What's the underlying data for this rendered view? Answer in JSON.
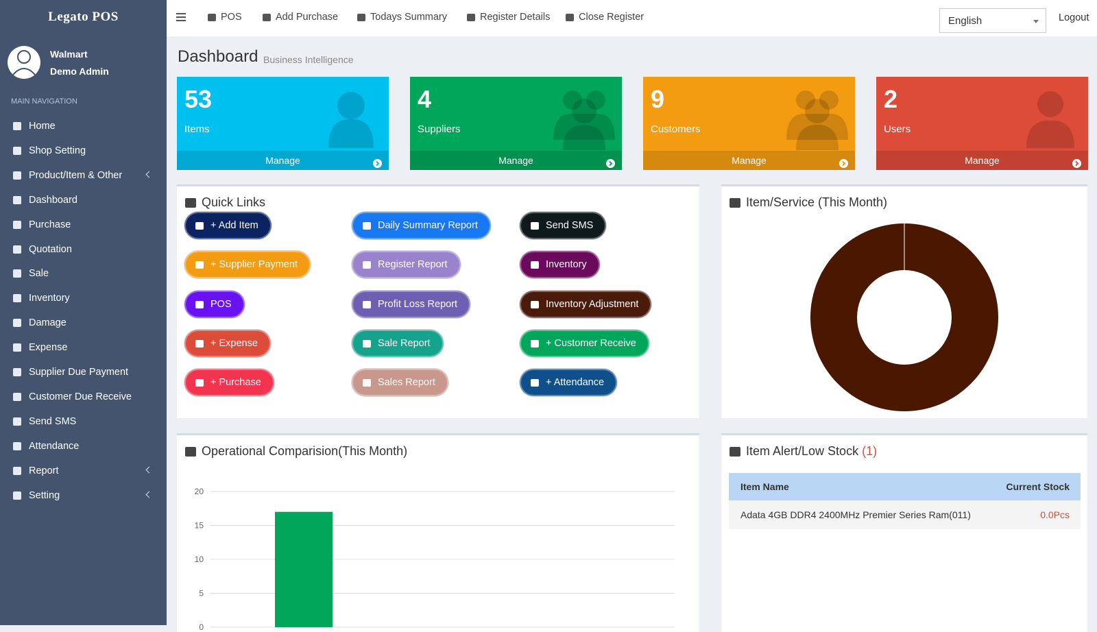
{
  "brand": "Legato POS",
  "user": {
    "name": "Walmart",
    "role": "Demo Admin"
  },
  "nav_header": "MAIN NAVIGATION",
  "nav": [
    {
      "label": "Home",
      "expandable": false
    },
    {
      "label": "Shop Setting",
      "expandable": false
    },
    {
      "label": "Product/Item & Other",
      "expandable": true
    },
    {
      "label": "Dashboard",
      "expandable": false
    },
    {
      "label": "Purchase",
      "expandable": false
    },
    {
      "label": "Quotation",
      "expandable": false
    },
    {
      "label": "Sale",
      "expandable": false
    },
    {
      "label": "Inventory",
      "expandable": false
    },
    {
      "label": "Damage",
      "expandable": false
    },
    {
      "label": "Expense",
      "expandable": false
    },
    {
      "label": "Supplier Due Payment",
      "expandable": false
    },
    {
      "label": "Customer Due Receive",
      "expandable": false
    },
    {
      "label": "Send SMS",
      "expandable": false
    },
    {
      "label": "Attendance",
      "expandable": false
    },
    {
      "label": "Report",
      "expandable": true
    },
    {
      "label": "Setting",
      "expandable": true
    }
  ],
  "topbar": {
    "links": [
      "POS",
      "Add Purchase",
      "Todays Summary",
      "Register Details",
      "Close Register"
    ],
    "language": "English",
    "logout": "Logout"
  },
  "page": {
    "title": "Dashboard",
    "subtitle": "Business Intelligence"
  },
  "stats": [
    {
      "value": 53,
      "label": "Items",
      "link": "Manage",
      "color": "#00c0ef"
    },
    {
      "value": 4,
      "label": "Suppliers",
      "link": "Manage",
      "color": "#00a65a"
    },
    {
      "value": 9,
      "label": "Customers",
      "link": "Manage",
      "color": "#f39c12"
    },
    {
      "value": 2,
      "label": "Users",
      "link": "Manage",
      "color": "#dd4b39"
    }
  ],
  "quick_links": {
    "title": "Quick Links",
    "buttons": [
      {
        "label": "+ Add Item",
        "color": "#0b2461"
      },
      {
        "label": "Daily Summary Report",
        "color": "#1877f2"
      },
      {
        "label": "Send SMS",
        "color": "#0e1a1c"
      },
      {
        "label": "+ Supplier Payment",
        "color": "#f39c12"
      },
      {
        "label": "Register Report",
        "color": "#9a82cc"
      },
      {
        "label": "Inventory",
        "color": "#6b0a5c"
      },
      {
        "label": "POS",
        "color": "#6a11f2"
      },
      {
        "label": "Profit Loss Report",
        "color": "#6e5fb3"
      },
      {
        "label": "Inventory Adjustment",
        "color": "#4a1a0a"
      },
      {
        "label": "+ Expense",
        "color": "#dd4b39"
      },
      {
        "label": "Sale Report",
        "color": "#16a38e"
      },
      {
        "label": "+ Customer Receive",
        "color": "#00a65a"
      },
      {
        "label": "+ Purchase",
        "color": "#f2344f"
      },
      {
        "label": "Sales Report",
        "color": "#c9978b"
      },
      {
        "label": "+ Attendance",
        "color": "#0f4f8a"
      }
    ]
  },
  "item_service": {
    "title": "Item/Service (This Month)",
    "chart": {
      "type": "pie",
      "values": [
        100
      ],
      "colors": [
        "#4a1800"
      ]
    }
  },
  "operational": {
    "title": "Operational Comparision(This Month)",
    "chart": {
      "type": "bar",
      "categories": [
        null
      ],
      "values": [
        17
      ],
      "color": "#00a65a",
      "ylim": [
        0,
        20
      ],
      "yticks": [
        0,
        5,
        10,
        15,
        20
      ],
      "grid": true
    }
  },
  "low_stock": {
    "title": "Item Alert/Low Stock",
    "count": "(1)",
    "columns": [
      "Item Name",
      "Current Stock"
    ],
    "rows": [
      [
        "Adata 4GB DDR4 2400MHz Premier Series Ram(011)",
        "0.0Pcs"
      ]
    ]
  }
}
